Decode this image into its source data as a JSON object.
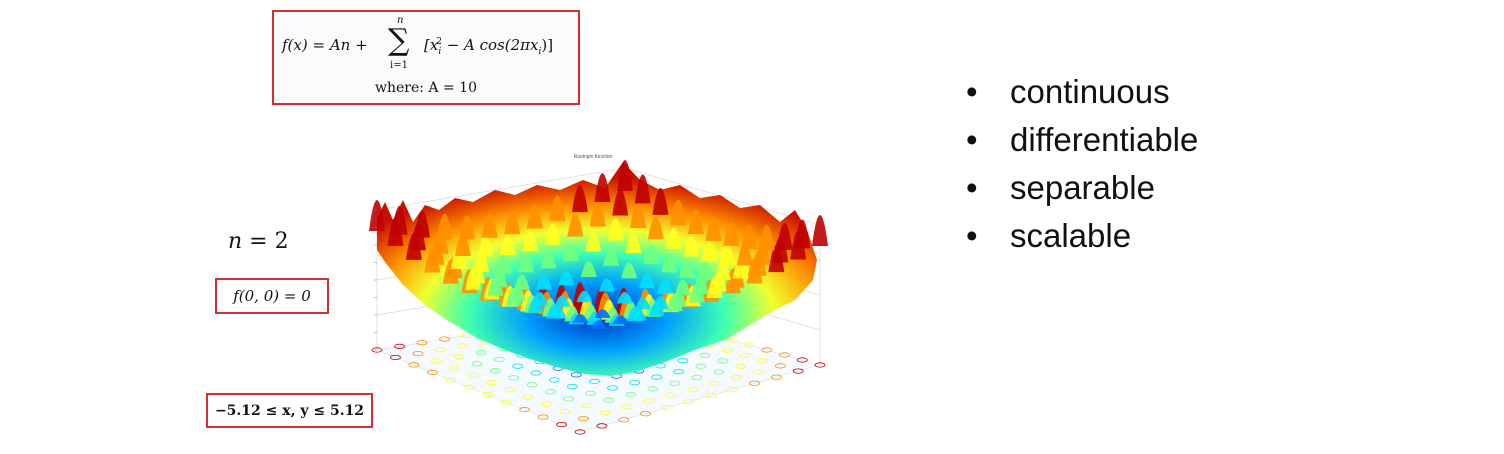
{
  "formula": {
    "lhs": "f(x) = An +",
    "sum_top": "n",
    "sum_bottom": "i=1",
    "body": "[x",
    "body_sub": "i",
    "body_sup": "2",
    "body_rest": " − A cos(2πx",
    "body_rest_sub": "i",
    "body_close": ")]",
    "where": "where: A = 10"
  },
  "n_label": {
    "var": "n",
    "eq": " = 2"
  },
  "origin_box": "f(0, 0) = 0",
  "domain_box": "−5.12 ≤ x, y ≤ 5.12",
  "plot": {
    "title": "Rastrigin function"
  },
  "properties": [
    "continuous",
    "differentiable",
    "separable",
    "scalable"
  ],
  "colors": {
    "box_border": "#d32f2f"
  }
}
